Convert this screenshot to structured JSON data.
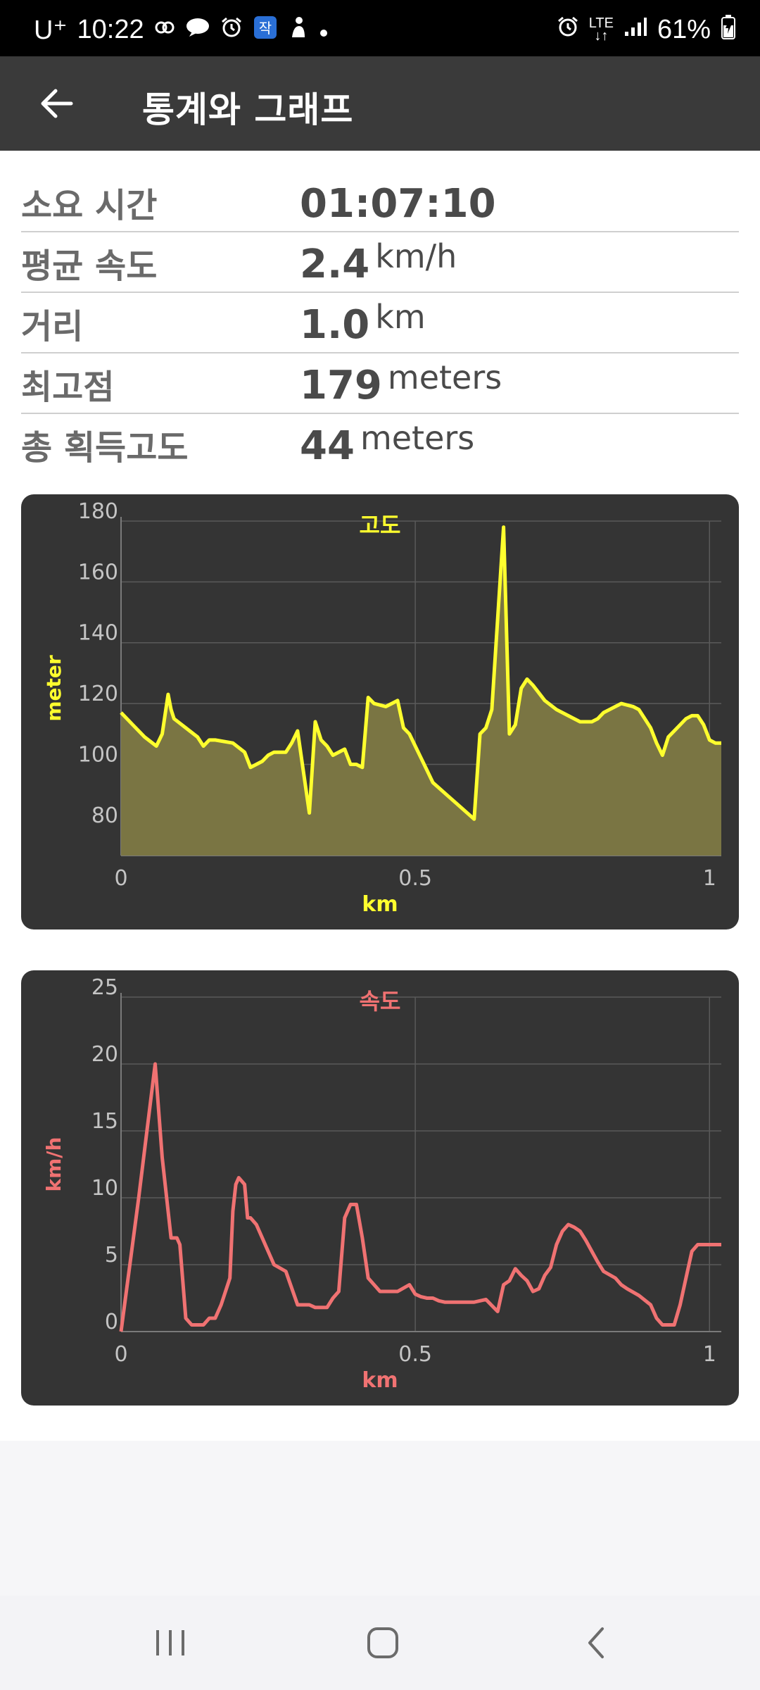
{
  "status_bar": {
    "carrier": "U⁺",
    "time": "10:22",
    "network": "LTE",
    "battery": "61%",
    "left_icons": [
      "link-icon",
      "chat-bubble-icon",
      "alarm-icon",
      "app-badge-icon",
      "figure-icon",
      "dot-icon"
    ],
    "right_icons": [
      "alarm-icon",
      "lte-icon",
      "signal-icon",
      "battery-icon"
    ]
  },
  "app_bar": {
    "title": "통계와 그래프"
  },
  "stats": [
    {
      "label": "소요 시간",
      "value": "01:07:10",
      "unit": ""
    },
    {
      "label": "평균 속도",
      "value": "2.4",
      "unit": "km/h"
    },
    {
      "label": "거리",
      "value": "1.0",
      "unit": "km"
    },
    {
      "label": "최고점",
      "value": "179",
      "unit": "meters"
    },
    {
      "label": "총 획득고도",
      "value": "44",
      "unit": "meters"
    }
  ],
  "chart_data": [
    {
      "type": "area",
      "title": "고도",
      "xlabel": "km",
      "ylabel": "meter",
      "xlim": [
        0,
        1.02
      ],
      "ylim": [
        70,
        180
      ],
      "x_ticks": [
        0,
        0.5,
        1
      ],
      "x_tick_labels": [
        "0",
        "0.5",
        "1"
      ],
      "y_ticks": [
        80,
        100,
        120,
        140,
        160,
        180
      ],
      "y_tick_labels": [
        "80",
        "100",
        "120",
        "140",
        "160",
        "180"
      ],
      "grid": true,
      "color": "#ffff2e",
      "fill": "#7a7543",
      "x": [
        0,
        0.02,
        0.04,
        0.06,
        0.07,
        0.08,
        0.085,
        0.09,
        0.11,
        0.13,
        0.14,
        0.15,
        0.16,
        0.19,
        0.21,
        0.22,
        0.23,
        0.24,
        0.25,
        0.26,
        0.28,
        0.29,
        0.3,
        0.32,
        0.33,
        0.34,
        0.345,
        0.35,
        0.36,
        0.38,
        0.39,
        0.4,
        0.41,
        0.42,
        0.43,
        0.45,
        0.46,
        0.47,
        0.48,
        0.49,
        0.5,
        0.51,
        0.52,
        0.53,
        0.6,
        0.61,
        0.62,
        0.63,
        0.65,
        0.66,
        0.67,
        0.68,
        0.69,
        0.7,
        0.72,
        0.74,
        0.76,
        0.78,
        0.8,
        0.81,
        0.82,
        0.83,
        0.85,
        0.87,
        0.88,
        0.89,
        0.9,
        0.91,
        0.92,
        0.93,
        0.94,
        0.95,
        0.96,
        0.97,
        0.98,
        0.99,
        1.0,
        1.01,
        1.02
      ],
      "y": [
        117,
        113,
        109,
        106,
        110,
        123,
        118,
        115,
        112,
        109,
        106,
        108,
        108,
        107,
        104,
        99,
        100,
        101,
        103,
        104,
        104,
        107,
        111,
        84,
        114,
        108,
        107,
        106,
        103,
        105,
        100,
        100,
        99,
        122,
        120,
        119,
        120,
        121,
        112,
        110,
        106,
        102,
        98,
        94,
        82,
        110,
        112,
        118,
        178,
        110,
        113,
        125,
        128,
        126,
        121,
        118,
        116,
        114,
        114,
        115,
        117,
        118,
        120,
        119,
        118,
        115,
        112,
        107,
        103,
        109,
        111,
        113,
        115,
        116,
        116,
        113,
        108,
        107,
        107
      ]
    },
    {
      "type": "line",
      "title": "속도",
      "xlabel": "km",
      "ylabel": "km/h",
      "xlim": [
        0,
        1.02
      ],
      "ylim": [
        0,
        25
      ],
      "x_ticks": [
        0,
        0.5,
        1
      ],
      "x_tick_labels": [
        "0",
        "0.5",
        "1"
      ],
      "y_ticks": [
        0,
        5,
        10,
        15,
        20,
        25
      ],
      "y_tick_labels": [
        "0",
        "5",
        "10",
        "15",
        "20",
        "25"
      ],
      "grid": true,
      "color": "#f07272",
      "x": [
        0,
        0.03,
        0.058,
        0.07,
        0.085,
        0.095,
        0.1,
        0.11,
        0.12,
        0.13,
        0.14,
        0.15,
        0.16,
        0.17,
        0.185,
        0.19,
        0.195,
        0.2,
        0.21,
        0.215,
        0.22,
        0.23,
        0.24,
        0.26,
        0.28,
        0.3,
        0.32,
        0.33,
        0.34,
        0.35,
        0.36,
        0.37,
        0.38,
        0.39,
        0.4,
        0.41,
        0.42,
        0.43,
        0.44,
        0.45,
        0.46,
        0.47,
        0.49,
        0.5,
        0.51,
        0.52,
        0.53,
        0.54,
        0.55,
        0.6,
        0.62,
        0.64,
        0.65,
        0.66,
        0.67,
        0.68,
        0.69,
        0.7,
        0.71,
        0.72,
        0.73,
        0.74,
        0.75,
        0.76,
        0.77,
        0.78,
        0.79,
        0.8,
        0.81,
        0.82,
        0.84,
        0.85,
        0.86,
        0.88,
        0.9,
        0.91,
        0.92,
        0.93,
        0.94,
        0.95,
        0.96,
        0.97,
        0.98,
        1.0,
        1.01,
        1.02
      ],
      "y": [
        0,
        10,
        20,
        13,
        7,
        7,
        6.5,
        1,
        0.5,
        0.5,
        0.5,
        1,
        1,
        2,
        4,
        9,
        11,
        11.5,
        11,
        8.5,
        8.5,
        8,
        7,
        5,
        4.5,
        2,
        2,
        1.8,
        1.8,
        1.8,
        2.5,
        3,
        8.5,
        9.5,
        9.5,
        7,
        4,
        3.5,
        3,
        3,
        3,
        3,
        3.5,
        2.8,
        2.6,
        2.5,
        2.5,
        2.3,
        2.2,
        2.2,
        2.4,
        1.5,
        3.5,
        3.8,
        4.7,
        4.2,
        3.8,
        3,
        3.2,
        4.2,
        4.8,
        6.5,
        7.5,
        8,
        7.8,
        7.5,
        6.8,
        6,
        5.2,
        4.5,
        4,
        3.5,
        3.2,
        2.7,
        2,
        1,
        0.5,
        0.5,
        0.5,
        2,
        4,
        6,
        6.5,
        6.5,
        6.5,
        6.5
      ]
    }
  ],
  "nav_bar": {
    "buttons": [
      "recents-icon",
      "home-icon",
      "back-icon"
    ]
  }
}
